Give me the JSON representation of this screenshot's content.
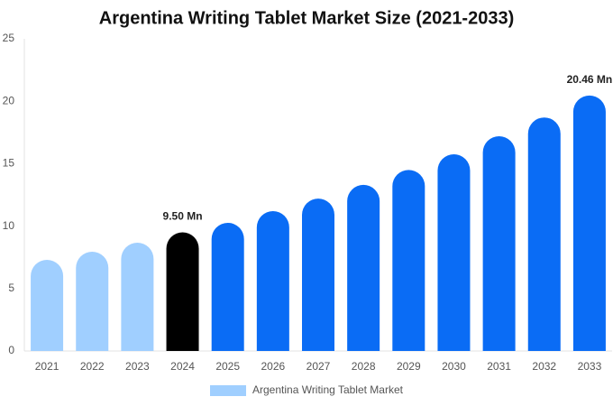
{
  "chart_data": {
    "type": "bar",
    "title": "Argentina Writing Tablet Market Size (2021-2033)",
    "categories": [
      "2021",
      "2022",
      "2023",
      "2024",
      "2025",
      "2026",
      "2027",
      "2028",
      "2029",
      "2030",
      "2031",
      "2032",
      "2033"
    ],
    "series": [
      {
        "name": "Argentina Writing Tablet Market",
        "color": "#a0cfff",
        "values": [
          7.3,
          7.95,
          8.67,
          9.5,
          10.26,
          11.2,
          12.2,
          13.3,
          14.5,
          15.75,
          17.2,
          18.7,
          20.46
        ],
        "value_labels": [
          null,
          null,
          null,
          "9.50 Mn",
          null,
          null,
          null,
          null,
          null,
          null,
          null,
          null,
          "20.46 Mn"
        ],
        "colors": [
          "#a0cfff",
          "#a0cfff",
          "#a0cfff",
          "#000000",
          "#0a6cf5",
          "#0a6cf5",
          "#0a6cf5",
          "#0a6cf5",
          "#0a6cf5",
          "#0a6cf5",
          "#0a6cf5",
          "#0a6cf5",
          "#0a6cf5"
        ]
      }
    ],
    "ylim": [
      0,
      25
    ],
    "yticks": [
      0,
      5,
      10,
      15,
      20,
      25
    ],
    "grid": false
  }
}
